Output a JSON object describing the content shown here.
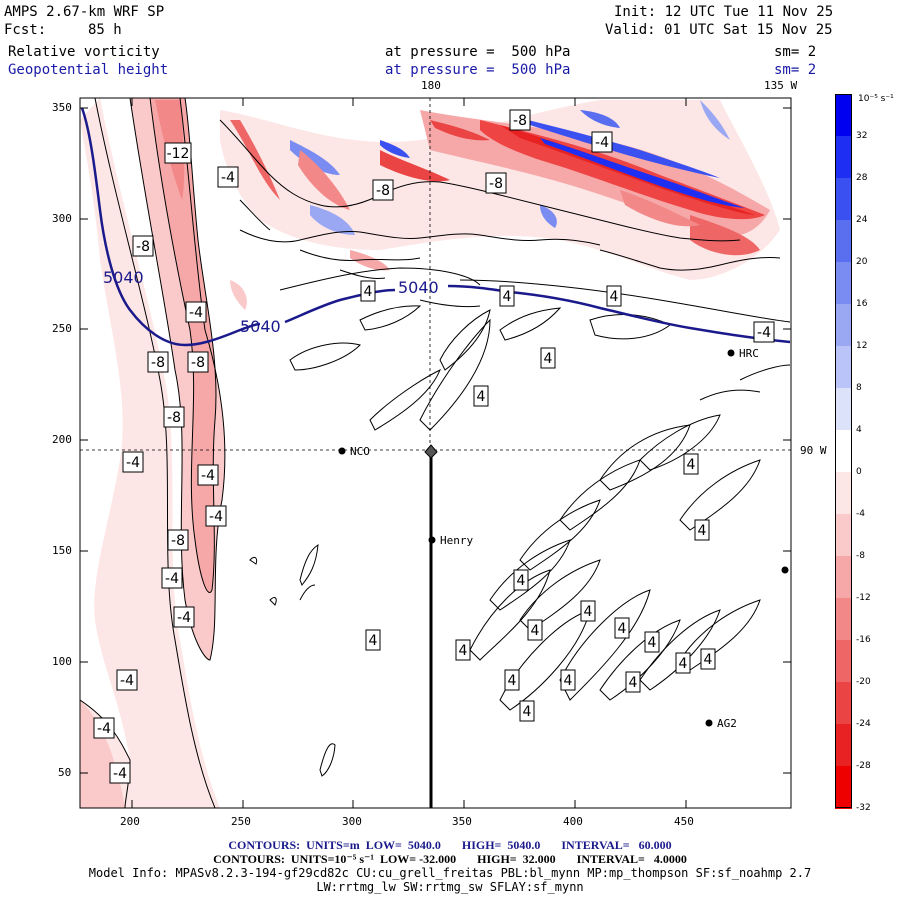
{
  "header": {
    "model": "AMPS 2.67-km WRF SP",
    "init": "Init: 12 UTC Tue 11 Nov 25",
    "fcst_label": "Fcst:",
    "fcst_value": "85 h",
    "valid": "Valid: 01 UTC Sat 15 Nov 25",
    "field1_name": "Relative vorticity",
    "field1_level": "at pressure =  500 hPa",
    "field1_sm": "sm= 2",
    "field2_name": "Geopotential height",
    "field2_level": "at pressure =  500 hPa",
    "field2_sm": "sm= 2"
  },
  "map": {
    "lon_label_top_180": "180",
    "lon_label_top_135w": "135 W",
    "lon_label_right_90w": "90 W",
    "x_ticks": [
      "200",
      "250",
      "300",
      "350",
      "400",
      "450"
    ],
    "y_ticks": [
      "350",
      "300",
      "250",
      "200",
      "150",
      "100",
      "50"
    ],
    "stations": [
      {
        "name": "NCO"
      },
      {
        "name": "Henry"
      },
      {
        "name": "HRC"
      },
      {
        "name": "AG2"
      }
    ],
    "height_contour_labels": [
      "5040",
      "5040",
      "5040"
    ],
    "vorticity_labels": [
      "-12",
      "-8",
      "-8",
      "-8",
      "-8",
      "-8",
      "-8",
      "-8",
      "-8",
      "-4",
      "-4",
      "-4",
      "-4",
      "-4",
      "-4",
      "-4",
      "-4",
      "-4",
      "-4",
      "-4",
      "-4",
      "4",
      "4",
      "4",
      "4",
      "4",
      "4",
      "4",
      "4",
      "4",
      "4",
      "4",
      "4",
      "4",
      "4",
      "4",
      "4",
      "4",
      "4",
      "4",
      "4"
    ]
  },
  "colorbar": {
    "unit_label": "10⁻⁵ s⁻¹",
    "labels": [
      "32",
      "28",
      "24",
      "20",
      "16",
      "12",
      "8",
      "4",
      "0",
      "-4",
      "-8",
      "-12",
      "-16",
      "-20",
      "-24",
      "-28",
      "-32"
    ],
    "colors_top_to_bottom": [
      "#0000f0",
      "#1e2ef2",
      "#3a50f0",
      "#5a6ef0",
      "#7a8cf2",
      "#9aa8f4",
      "#bac4f8",
      "#dde2fb",
      "#ffffff",
      "#fde6e6",
      "#facaca",
      "#f6a8a8",
      "#f28888",
      "#ee6666",
      "#ea4444",
      "#e82222",
      "#ee0000"
    ]
  },
  "footer": {
    "contours_height": "CONTOURS:  UNITS=m  LOW=  5040.0       HIGH=  5040.0       INTERVAL=   60.000",
    "contours_vort": "CONTOURS:  UNITS=10⁻⁵ s⁻¹  LOW= -32.000       HIGH=  32.000       INTERVAL=   4.0000",
    "model_info": "Model Info: MPASv8.2.3-194-gf29cd82c CU:cu_grell_freitas PBL:bl_mynn MP:mp_thompson SF:sf_noahmp 2.7",
    "model_info2": "LW:rrtmg_lw SW:rrtmg_sw SFLAY:sf_mynn"
  }
}
